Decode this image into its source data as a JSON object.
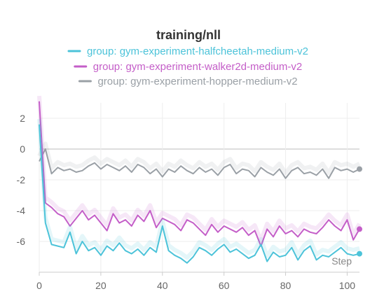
{
  "chart_data": {
    "type": "line",
    "title": "training/nll",
    "xlabel": "Step",
    "ylabel": "",
    "xlim": [
      0,
      104
    ],
    "ylim": [
      -8,
      3
    ],
    "x_ticks": [
      0,
      20,
      40,
      60,
      80,
      100
    ],
    "y_ticks": [
      2,
      0,
      -2,
      -4,
      -6
    ],
    "grid": true,
    "legend_position": "top-center",
    "series": [
      {
        "name": "group: gym-experiment-halfcheetah-medium-v2",
        "color": "#4cc3d9",
        "x": [
          0,
          2,
          4,
          6,
          8,
          10,
          12,
          14,
          16,
          18,
          20,
          22,
          24,
          26,
          28,
          30,
          32,
          34,
          36,
          38,
          40,
          42,
          44,
          46,
          48,
          50,
          52,
          54,
          56,
          58,
          60,
          62,
          64,
          66,
          68,
          70,
          72,
          74,
          76,
          78,
          80,
          82,
          84,
          86,
          88,
          90,
          92,
          94,
          96,
          98,
          100,
          102,
          104
        ],
        "values": [
          1.6,
          -4.8,
          -6.2,
          -6.3,
          -6.4,
          -5.4,
          -6.8,
          -6.0,
          -6.6,
          -6.4,
          -6.9,
          -6.3,
          -6.6,
          -6.1,
          -6.6,
          -6.8,
          -6.5,
          -6.9,
          -6.4,
          -6.7,
          -5.0,
          -6.6,
          -6.9,
          -7.1,
          -7.4,
          -7.0,
          -6.4,
          -6.6,
          -6.9,
          -6.5,
          -6.2,
          -6.7,
          -6.5,
          -6.8,
          -7.1,
          -6.9,
          -6.2,
          -7.3,
          -6.7,
          -7.0,
          -6.9,
          -6.4,
          -7.2,
          -6.6,
          -6.3,
          -7.2,
          -6.9,
          -7.0,
          -6.7,
          -6.4,
          -6.8,
          -6.9,
          -6.8
        ]
      },
      {
        "name": "group: gym-experiment-walker2d-medium-v2",
        "color": "#c45ec8",
        "x": [
          0,
          2,
          4,
          6,
          8,
          10,
          12,
          14,
          16,
          18,
          20,
          22,
          24,
          26,
          28,
          30,
          32,
          34,
          36,
          38,
          40,
          42,
          44,
          46,
          48,
          50,
          52,
          54,
          56,
          58,
          60,
          62,
          64,
          66,
          68,
          70,
          72,
          74,
          76,
          78,
          80,
          82,
          84,
          86,
          88,
          90,
          92,
          94,
          96,
          98,
          100,
          102,
          104
        ],
        "values": [
          3.1,
          -3.5,
          -3.8,
          -4.2,
          -4.4,
          -5.0,
          -4.5,
          -4.0,
          -4.6,
          -4.3,
          -4.8,
          -5.3,
          -4.2,
          -4.8,
          -4.6,
          -5.0,
          -4.3,
          -4.7,
          -4.0,
          -5.1,
          -4.5,
          -4.7,
          -4.9,
          -5.3,
          -4.6,
          -4.8,
          -5.2,
          -5.6,
          -4.9,
          -5.4,
          -5.0,
          -5.2,
          -5.4,
          -5.1,
          -5.6,
          -5.3,
          -6.3,
          -5.2,
          -5.7,
          -5.0,
          -5.5,
          -5.3,
          -5.7,
          -5.2,
          -5.4,
          -5.5,
          -5.1,
          -4.6,
          -5.0,
          -5.3,
          -4.6,
          -5.9,
          -5.2
        ]
      },
      {
        "name": "group: gym-experiment-hopper-medium-v2",
        "color": "#9aa0a6",
        "x": [
          0,
          2,
          4,
          6,
          8,
          10,
          12,
          14,
          16,
          18,
          20,
          22,
          24,
          26,
          28,
          30,
          32,
          34,
          36,
          38,
          40,
          42,
          44,
          46,
          48,
          50,
          52,
          54,
          56,
          58,
          60,
          62,
          64,
          66,
          68,
          70,
          72,
          74,
          76,
          78,
          80,
          82,
          84,
          86,
          88,
          90,
          92,
          94,
          96,
          98,
          100,
          102,
          104
        ],
        "values": [
          -0.8,
          0.0,
          -1.6,
          -1.2,
          -1.4,
          -1.3,
          -1.5,
          -1.4,
          -1.1,
          -0.9,
          -1.3,
          -1.0,
          -1.2,
          -1.4,
          -1.1,
          -1.5,
          -1.0,
          -1.2,
          -1.6,
          -1.3,
          -1.8,
          -1.3,
          -1.5,
          -1.1,
          -1.4,
          -1.6,
          -1.2,
          -1.5,
          -1.3,
          -1.7,
          -1.2,
          -1.0,
          -1.6,
          -1.3,
          -1.4,
          -1.8,
          -1.2,
          -1.5,
          -1.7,
          -1.3,
          -1.9,
          -1.4,
          -1.2,
          -1.6,
          -1.5,
          -1.7,
          -1.3,
          -1.9,
          -1.2,
          -1.4,
          -1.3,
          -1.5,
          -1.3
        ]
      }
    ]
  }
}
